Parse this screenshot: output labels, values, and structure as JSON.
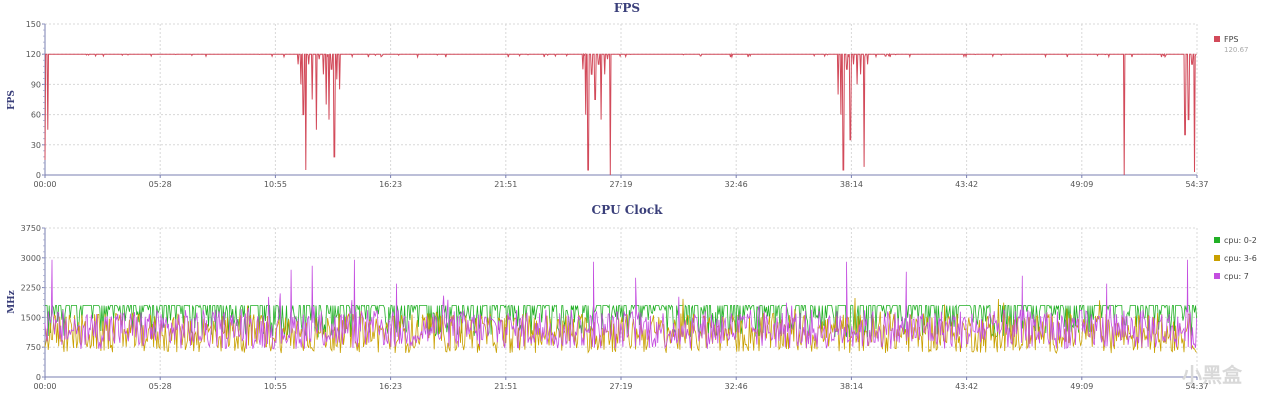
{
  "chart_data": [
    {
      "id": "fps",
      "type": "line",
      "title": "FPS",
      "ylabel": "FPS",
      "ylim": [
        0,
        150
      ],
      "yticks": [
        "0",
        "30",
        "60",
        "90",
        "120",
        "150"
      ],
      "xticks": [
        "00:00",
        "05:28",
        "10:55",
        "16:23",
        "21:51",
        "27:19",
        "32:46",
        "38:14",
        "43:42",
        "49:09",
        "54:37"
      ],
      "x_range_seconds": [
        0,
        3277
      ],
      "grid": true,
      "legend_position": "right",
      "series": [
        {
          "name": "FPS",
          "legend_value": "120.67",
          "color": "#d24a5a",
          "baseline": 120,
          "dips": [
            [
              0,
              15
            ],
            [
              8,
              45
            ],
            [
              14,
              120
            ],
            [
              720,
              110
            ],
            [
              728,
              90
            ],
            [
              735,
              60
            ],
            [
              742,
              5
            ],
            [
              750,
              110
            ],
            [
              760,
              75
            ],
            [
              772,
              45
            ],
            [
              780,
              115
            ],
            [
              792,
              100
            ],
            [
              800,
              70
            ],
            [
              808,
              55
            ],
            [
              815,
              105
            ],
            [
              823,
              18
            ],
            [
              830,
              95
            ],
            [
              838,
              85
            ],
            [
              1530,
              105
            ],
            [
              1538,
              60
            ],
            [
              1545,
              5
            ],
            [
              1555,
              100
            ],
            [
              1565,
              75
            ],
            [
              1575,
              110
            ],
            [
              1582,
              55
            ],
            [
              1592,
              100
            ],
            [
              1600,
              115
            ],
            [
              1608,
              0
            ],
            [
              2256,
              80
            ],
            [
              2264,
              60
            ],
            [
              2271,
              5
            ],
            [
              2281,
              105
            ],
            [
              2291,
              35
            ],
            [
              2300,
              110
            ],
            [
              2310,
              90
            ],
            [
              2320,
              100
            ],
            [
              2330,
              8
            ],
            [
              2340,
              110
            ],
            [
              3070,
              0
            ],
            [
              3243,
              40
            ],
            [
              3253,
              55
            ],
            [
              3263,
              110
            ],
            [
              3270,
              3
            ]
          ]
        }
      ]
    },
    {
      "id": "cpu",
      "type": "line",
      "title": "CPU Clock",
      "ylabel": "MHz",
      "ylim": [
        0,
        3750
      ],
      "yticks": [
        "0",
        "750",
        "1500",
        "2250",
        "3000",
        "3750"
      ],
      "xticks": [
        "00:00",
        "05:28",
        "10:55",
        "16:23",
        "21:51",
        "27:19",
        "32:46",
        "38:14",
        "43:42",
        "49:09",
        "54:37"
      ],
      "x_range_seconds": [
        0,
        3277
      ],
      "grid": true,
      "legend_position": "right",
      "series": [
        {
          "name": "cpu: 0-2",
          "color": "#22b026",
          "typical_range": [
            1000,
            1800
          ]
        },
        {
          "name": "cpu: 3-6",
          "color": "#c9a000",
          "typical_range": [
            600,
            1600
          ]
        },
        {
          "name": "cpu: 7",
          "color": "#c44ee0",
          "typical_range": [
            700,
            1700
          ],
          "peaks": [
            [
              20,
              2950
            ],
            [
              700,
              2700
            ],
            [
              760,
              2800
            ],
            [
              880,
              2950
            ],
            [
              1000,
              2350
            ],
            [
              1560,
              2900
            ],
            [
              1680,
              2500
            ],
            [
              2280,
              2900
            ],
            [
              2450,
              2650
            ],
            [
              2780,
              2550
            ],
            [
              3020,
              2350
            ],
            [
              3250,
              2950
            ]
          ]
        }
      ]
    }
  ],
  "watermark": "小黑盒"
}
